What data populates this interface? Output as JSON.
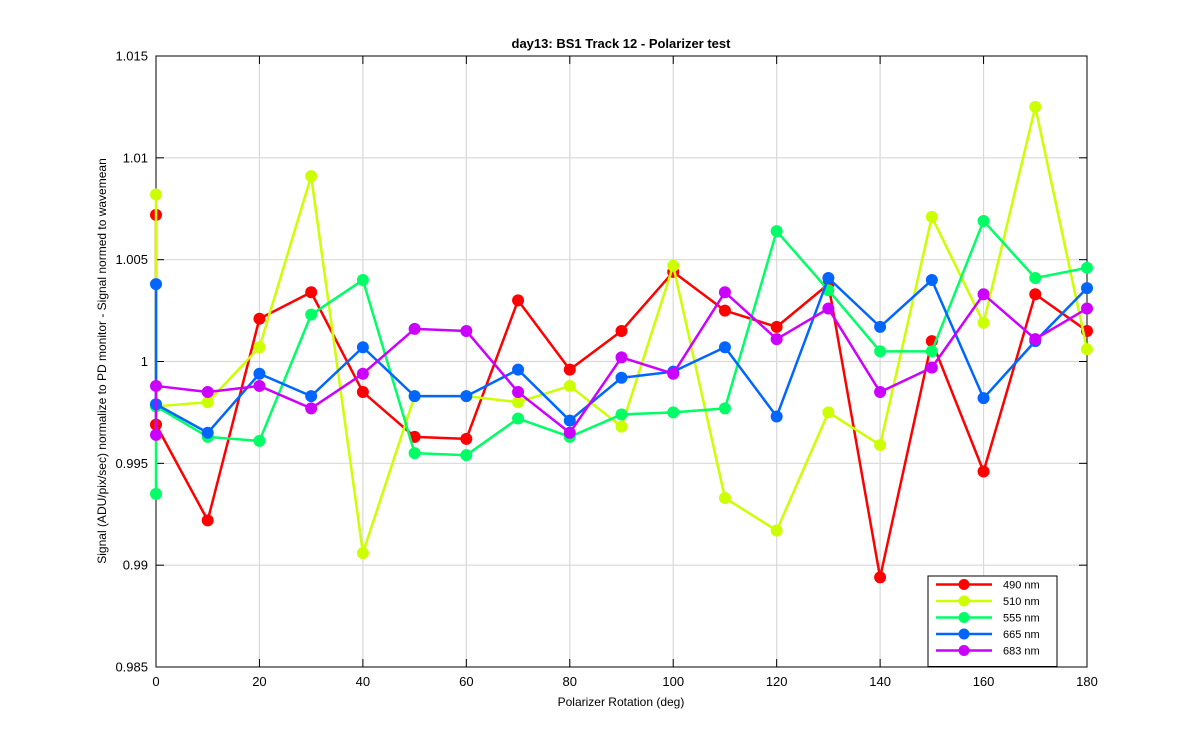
{
  "chart_data": {
    "type": "line",
    "title": "day13: BS1  Track 12 - Polarizer test",
    "xlabel": "Polarizer Rotation (deg)",
    "ylabel": "Signal (ADU/pix/sec) normalize to PD monitor - Signal normed to wavemean",
    "xlim": [
      0,
      180
    ],
    "ylim": [
      0.985,
      1.015
    ],
    "xticks": [
      0,
      20,
      40,
      60,
      80,
      100,
      120,
      140,
      160,
      180
    ],
    "xtick_labels": [
      "0",
      "20",
      "40",
      "60",
      "80",
      "100",
      "120",
      "140",
      "160",
      "180"
    ],
    "yticks": [
      0.985,
      0.99,
      0.995,
      1.0,
      1.005,
      1.01,
      1.015
    ],
    "ytick_labels": [
      "0.985",
      "0.99",
      "0.995",
      "1",
      "1.005",
      "1.01",
      "1.015"
    ],
    "grid": true,
    "legend_position": "bottom-right",
    "x": [
      0,
      0,
      10,
      20,
      30,
      40,
      50,
      60,
      70,
      80,
      90,
      100,
      110,
      120,
      130,
      140,
      150,
      160,
      170,
      180
    ],
    "series": [
      {
        "name": "490 nm",
        "color": "#ff0000",
        "values": [
          1.0072,
          0.9969,
          0.9922,
          1.0021,
          1.0034,
          0.9985,
          0.9963,
          0.9962,
          1.003,
          0.9996,
          1.0015,
          1.0044,
          1.0025,
          1.0017,
          1.0038,
          0.9894,
          1.001,
          0.9946,
          1.0033,
          1.0015
        ]
      },
      {
        "name": "510 nm",
        "color": "#ccff00",
        "values": [
          1.0082,
          0.9978,
          0.998,
          1.0007,
          1.0091,
          0.9906,
          0.9983,
          0.9983,
          0.998,
          0.9988,
          0.9968,
          1.0047,
          0.9933,
          0.9917,
          0.9975,
          0.9959,
          1.0071,
          1.0019,
          1.0125,
          1.0006
        ]
      },
      {
        "name": "555 nm",
        "color": "#00ff66",
        "values": [
          0.9935,
          0.9978,
          0.9963,
          0.9961,
          1.0023,
          1.004,
          0.9955,
          0.9954,
          0.9972,
          0.9963,
          0.9974,
          0.9975,
          0.9977,
          1.0064,
          1.0035,
          1.0005,
          1.0005,
          1.0069,
          1.0041,
          1.0046
        ]
      },
      {
        "name": "665 nm",
        "color": "#0066ff",
        "values": [
          1.0038,
          0.9979,
          0.9965,
          0.9994,
          0.9983,
          1.0007,
          0.9983,
          0.9983,
          0.9996,
          0.9971,
          0.9992,
          0.9995,
          1.0007,
          0.9973,
          1.0041,
          1.0017,
          1.004,
          0.9982,
          1.001,
          1.0036
        ]
      },
      {
        "name": "683 nm",
        "color": "#cc00ff",
        "values": [
          0.9964,
          0.9988,
          0.9985,
          0.9988,
          0.9977,
          0.9994,
          1.0016,
          1.0015,
          0.9985,
          0.9965,
          1.0002,
          0.9994,
          1.0034,
          1.0011,
          1.0026,
          0.9985,
          0.9997,
          1.0033,
          1.0011,
          1.0026
        ]
      }
    ]
  }
}
